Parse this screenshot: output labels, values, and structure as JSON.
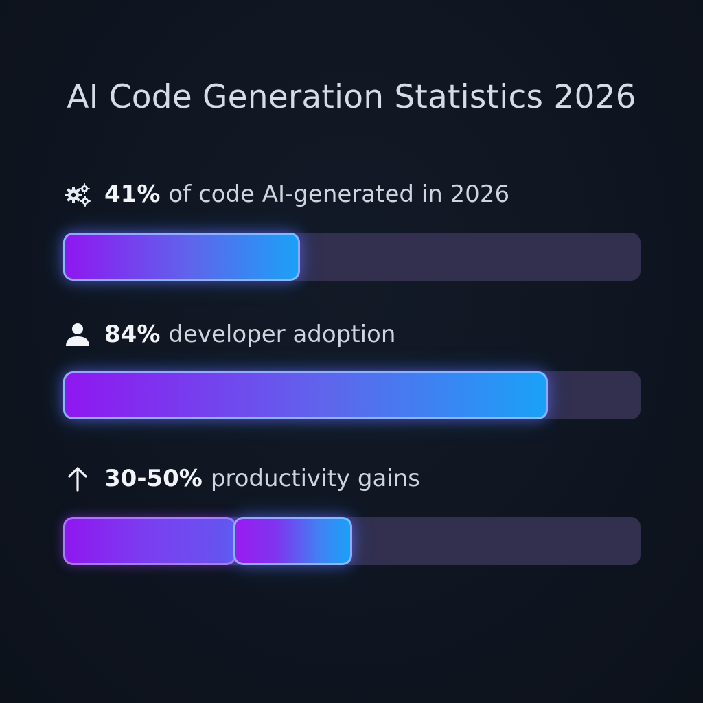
{
  "chart_data": {
    "type": "bar",
    "title": "AI Code Generation Statistics 2026",
    "xlim": [
      0,
      100
    ],
    "unit": "%",
    "bars": [
      {
        "label": "41%",
        "description": "of code AI-generated in 2026",
        "icon": "gears-icon",
        "value": 41
      },
      {
        "label": "84%",
        "description": "developer adoption",
        "icon": "user-icon",
        "value": 84
      },
      {
        "label": "30-50%",
        "description": "productivity gains",
        "icon": "arrow-up-icon",
        "range": [
          30,
          50
        ]
      }
    ]
  },
  "colors": {
    "background": "#0f1520",
    "track": "#322f4f",
    "gradient_start": "#8f17f0",
    "gradient_end": "#1aa1f7",
    "text": "#d9dee7"
  }
}
